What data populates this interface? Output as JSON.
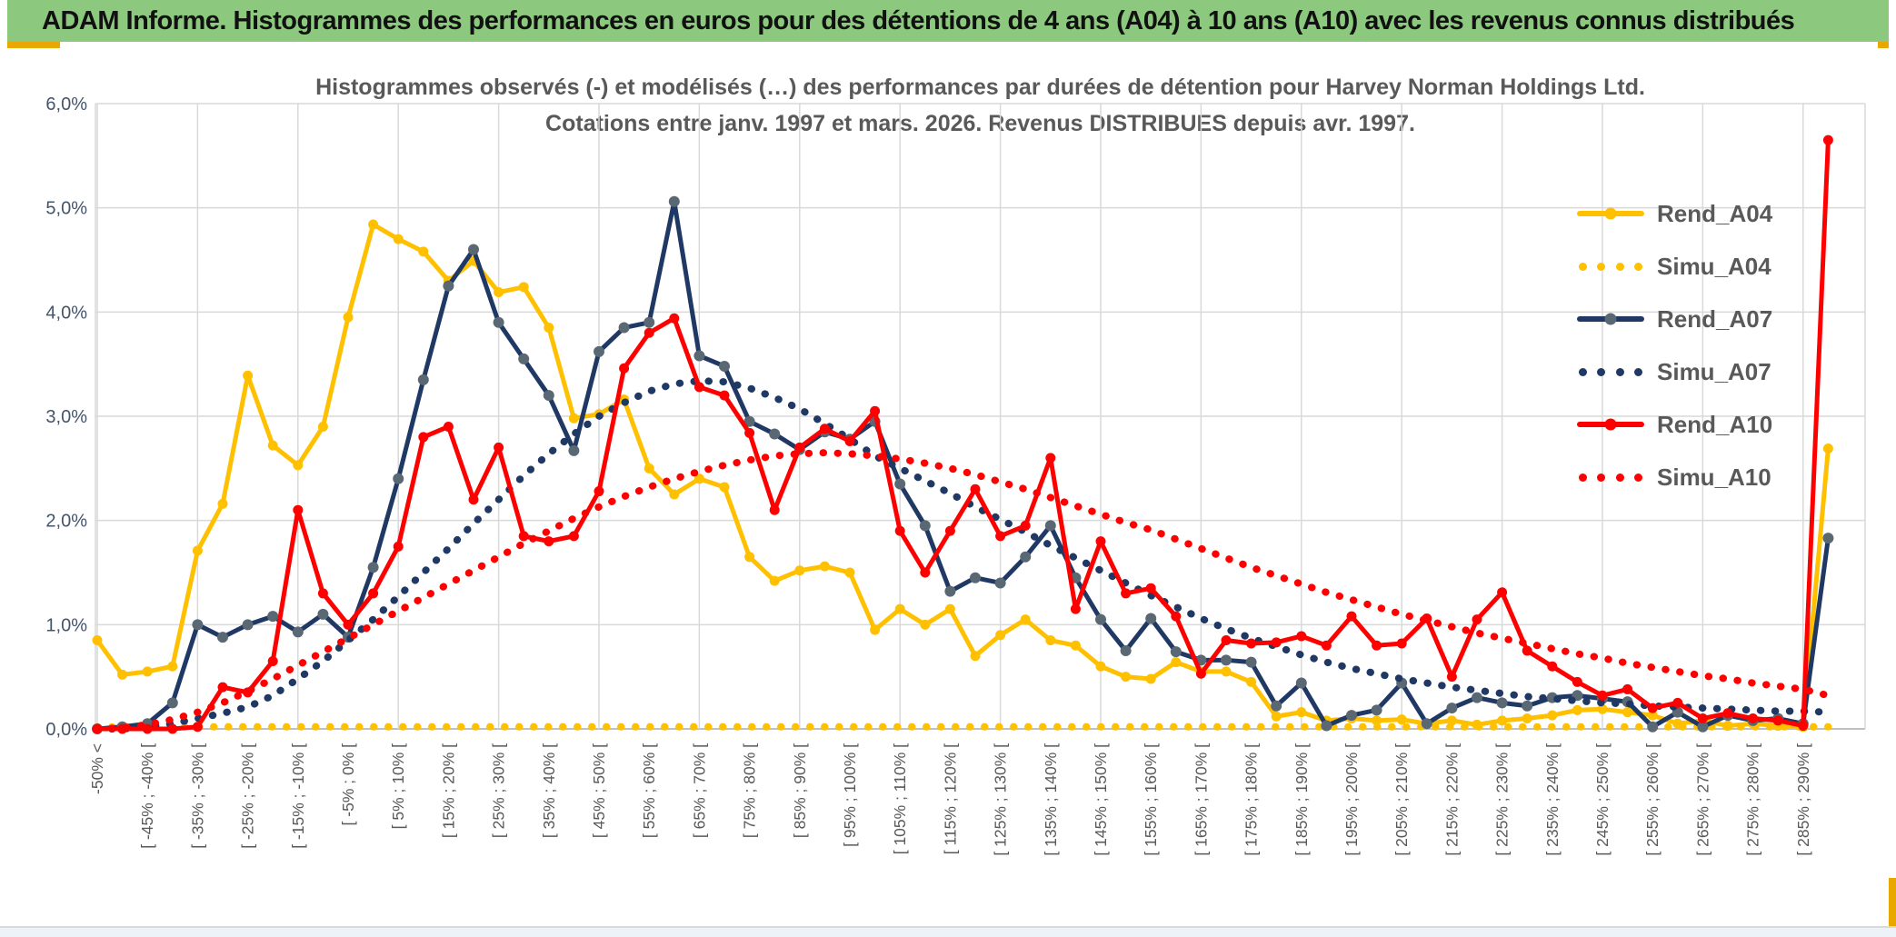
{
  "banner": {
    "title": "ADAM Informe. Histogrammes des performances en euros pour des détentions de 4 ans (A04) à 10 ans (A10) avec les revenus connus distribués"
  },
  "colors": {
    "banner_green": "#8CC97E",
    "accent_gold": "#E9A800",
    "series_gold": "#FFC000",
    "series_navy": "#1F3864",
    "series_red": "#FF0000",
    "navy_marker": "#5A6874",
    "gridline": "#D9D9D9",
    "axis_line": "#BFBFBF",
    "y_label": "#44546A",
    "x_label": "#595959",
    "title_gray": "#595959"
  },
  "chart_data": {
    "type": "line",
    "title_line1": "Histogrammes observés (-) et modélisés (…) des performances par durées de détention pour Harvey Norman Holdings Ltd.",
    "title_line2": "Cotations entre janv. 1997 et mars. 2026. Revenus DISTRIBUES depuis avr. 1997.",
    "ylim": [
      0,
      6
    ],
    "y_tick_labels": [
      "0,0%",
      "1,0%",
      "2,0%",
      "3,0%",
      "4,0%",
      "5,0%",
      "6,0%"
    ],
    "grid": true,
    "legend_position": "right",
    "bins_total": 70,
    "x_label_every": 2,
    "x_labels": [
      "-50% <",
      "[ -45% ; -40% [",
      "[ -35% ; -30% [",
      "[ -25% ; -20% [",
      "[ -15% ; -10% [",
      "[ -5% ; 0% [",
      "[ 5% ; 10% [",
      "[ 15% ; 20% [",
      "[ 25% ; 30% [",
      "[ 35% ; 40% [",
      "[ 45% ; 50% [",
      "[ 55% ; 60% [",
      "[ 65% ; 70% [",
      "[ 75% ; 80% [",
      "[ 85% ; 90% [",
      "[ 95% ; 100% [",
      "[ 105% ; 110% [",
      "[ 115% ; 120% [",
      "[ 125% ; 130% [",
      "[ 135% ; 140% [",
      "[ 145% ; 150% [",
      "[ 155% ; 160% [",
      "[ 165% ; 170% [",
      "[ 175% ; 180% [",
      "[ 185% ; 190% [",
      "[ 195% ; 200% [",
      "[ 205% ; 210% [",
      "[ 215% ; 220% [",
      "[ 225% ; 230% [",
      "[ 235% ; 240% [",
      "[ 245% ; 250% [",
      "[ 255% ; 260% [",
      "[ 265% ; 270% [",
      "[ 275% ; 280% [",
      "[ 285% ; 290% ["
    ],
    "series": [
      {
        "name": "Rend_A04",
        "style": "solid",
        "color": "#FFC000",
        "marker": "#FFC000",
        "values": [
          0.85,
          0.52,
          0.55,
          0.6,
          1.71,
          2.16,
          3.39,
          2.72,
          2.53,
          2.9,
          3.95,
          4.84,
          4.7,
          4.58,
          4.3,
          4.49,
          4.19,
          4.24,
          3.85,
          2.98,
          3.02,
          3.16,
          2.5,
          2.25,
          2.4,
          2.32,
          1.65,
          1.42,
          1.52,
          1.56,
          1.5,
          0.95,
          1.15,
          1.0,
          1.15,
          0.7,
          0.9,
          1.05,
          0.85,
          0.8,
          0.6,
          0.5,
          0.48,
          0.64,
          0.55,
          0.55,
          0.45,
          0.12,
          0.16,
          0.08,
          0.1,
          0.08,
          0.09,
          0.05,
          0.08,
          0.04,
          0.08,
          0.1,
          0.13,
          0.18,
          0.19,
          0.16,
          0.13,
          0.05,
          0.08,
          0.03,
          0.05,
          0.03,
          0.02,
          2.69
        ]
      },
      {
        "name": "Simu_A04",
        "style": "dotted",
        "color": "#FFC000",
        "values": [
          0.02,
          0.02,
          0.02,
          0.02,
          0.02,
          0.02,
          0.02,
          0.02,
          0.02,
          0.02,
          0.02,
          0.02,
          0.02,
          0.02,
          0.02,
          0.02,
          0.02,
          0.02,
          0.02,
          0.02,
          0.02,
          0.02,
          0.02,
          0.02,
          0.02,
          0.02,
          0.02,
          0.02,
          0.02,
          0.02,
          0.02,
          0.02,
          0.02,
          0.02,
          0.02,
          0.02,
          0.02,
          0.02,
          0.02,
          0.02,
          0.02,
          0.02,
          0.02,
          0.02,
          0.02,
          0.02,
          0.02,
          0.02,
          0.02,
          0.02,
          0.02,
          0.02,
          0.02,
          0.02,
          0.02,
          0.02,
          0.02,
          0.02,
          0.02,
          0.02,
          0.02,
          0.02,
          0.02,
          0.02,
          0.02,
          0.02,
          0.02,
          0.02,
          0.02,
          0.02
        ]
      },
      {
        "name": "Rend_A07",
        "style": "solid",
        "color": "#1F3864",
        "marker": "#5A6874",
        "values": [
          0.0,
          0.02,
          0.05,
          0.25,
          1.0,
          0.88,
          1.0,
          1.08,
          0.93,
          1.1,
          0.88,
          1.55,
          2.4,
          3.35,
          4.25,
          4.6,
          3.9,
          3.55,
          3.2,
          2.67,
          3.62,
          3.85,
          3.9,
          5.06,
          3.58,
          3.48,
          2.95,
          2.83,
          2.68,
          2.85,
          2.78,
          2.95,
          2.35,
          1.95,
          1.32,
          1.45,
          1.4,
          1.65,
          1.95,
          1.45,
          1.05,
          0.75,
          1.06,
          0.74,
          0.66,
          0.66,
          0.64,
          0.22,
          0.44,
          0.03,
          0.13,
          0.18,
          0.44,
          0.05,
          0.2,
          0.3,
          0.25,
          0.22,
          0.3,
          0.32,
          0.29,
          0.26,
          0.02,
          0.16,
          0.02,
          0.13,
          0.08,
          0.1,
          0.05,
          1.83
        ]
      },
      {
        "name": "Simu_A07",
        "style": "dotted",
        "color": "#1F3864",
        "values": [
          0.0,
          0.0,
          0.02,
          0.05,
          0.1,
          0.15,
          0.21,
          0.32,
          0.48,
          0.65,
          0.85,
          1.05,
          1.27,
          1.5,
          1.73,
          1.97,
          2.2,
          2.43,
          2.64,
          2.83,
          3.0,
          3.13,
          3.24,
          3.31,
          3.34,
          3.33,
          3.27,
          3.18,
          3.07,
          2.93,
          2.78,
          2.62,
          2.5,
          2.38,
          2.26,
          2.13,
          2.01,
          1.89,
          1.76,
          1.64,
          1.52,
          1.4,
          1.28,
          1.17,
          1.06,
          0.96,
          0.87,
          0.79,
          0.71,
          0.64,
          0.58,
          0.53,
          0.48,
          0.44,
          0.4,
          0.37,
          0.34,
          0.31,
          0.29,
          0.27,
          0.25,
          0.24,
          0.22,
          0.21,
          0.2,
          0.19,
          0.18,
          0.17,
          0.17,
          0.16
        ]
      },
      {
        "name": "Rend_A10",
        "style": "solid",
        "color": "#FF0000",
        "marker": "#FF0000",
        "values": [
          0.0,
          0.0,
          0.0,
          0.0,
          0.02,
          0.4,
          0.35,
          0.65,
          2.1,
          1.3,
          1.0,
          1.3,
          1.75,
          2.8,
          2.9,
          2.2,
          2.7,
          1.85,
          1.8,
          1.85,
          2.28,
          3.46,
          3.8,
          3.94,
          3.28,
          3.2,
          2.84,
          2.1,
          2.7,
          2.88,
          2.76,
          3.05,
          1.9,
          1.5,
          1.9,
          2.3,
          1.85,
          1.95,
          2.6,
          1.15,
          1.8,
          1.3,
          1.35,
          1.08,
          0.53,
          0.85,
          0.82,
          0.83,
          0.89,
          0.8,
          1.08,
          0.8,
          0.82,
          1.06,
          0.5,
          1.05,
          1.31,
          0.75,
          0.6,
          0.45,
          0.32,
          0.38,
          0.2,
          0.25,
          0.1,
          0.15,
          0.1,
          0.08,
          0.03,
          5.65
        ]
      },
      {
        "name": "Simu_A10",
        "style": "dotted",
        "color": "#FF0000",
        "values": [
          0.0,
          0.01,
          0.04,
          0.09,
          0.16,
          0.25,
          0.36,
          0.48,
          0.61,
          0.74,
          0.87,
          1.0,
          1.13,
          1.26,
          1.39,
          1.52,
          1.65,
          1.78,
          1.9,
          2.02,
          2.13,
          2.23,
          2.32,
          2.4,
          2.47,
          2.53,
          2.58,
          2.62,
          2.64,
          2.65,
          2.64,
          2.62,
          2.59,
          2.55,
          2.5,
          2.44,
          2.37,
          2.3,
          2.22,
          2.14,
          2.06,
          1.98,
          1.91,
          1.82,
          1.73,
          1.64,
          1.55,
          1.47,
          1.39,
          1.31,
          1.24,
          1.17,
          1.1,
          1.04,
          0.98,
          0.92,
          0.87,
          0.82,
          0.77,
          0.72,
          0.68,
          0.63,
          0.59,
          0.55,
          0.51,
          0.48,
          0.44,
          0.41,
          0.38,
          0.32
        ]
      }
    ]
  }
}
